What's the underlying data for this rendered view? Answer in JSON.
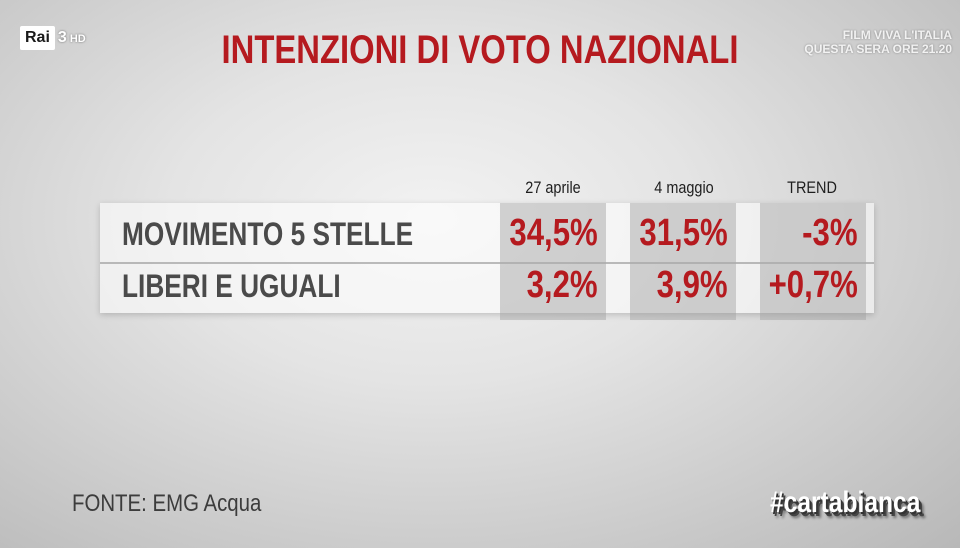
{
  "channel": {
    "name": "Rai",
    "number": "3",
    "quality": "HD"
  },
  "promo": {
    "line1": "FILM VIVA L'ITALIA",
    "line2": "QUESTA SERA ORE 21.20"
  },
  "title": "INTENZIONI DI VOTO NAZIONALI",
  "columns": [
    "27 aprile",
    "4 maggio",
    "TREND"
  ],
  "rows": [
    {
      "party": "MOVIMENTO 5 STELLE",
      "values": [
        "34,5%",
        "31,5%",
        "-3%"
      ]
    },
    {
      "party": "LIBERI E UGUALI",
      "values": [
        "3,2%",
        "3,9%",
        "+0,7%"
      ]
    }
  ],
  "source": "FONTE: EMG Acqua",
  "hashtag": "#cartabianca",
  "colors": {
    "accent_red": "#b51a1f",
    "party_text": "#4a4a4a"
  }
}
